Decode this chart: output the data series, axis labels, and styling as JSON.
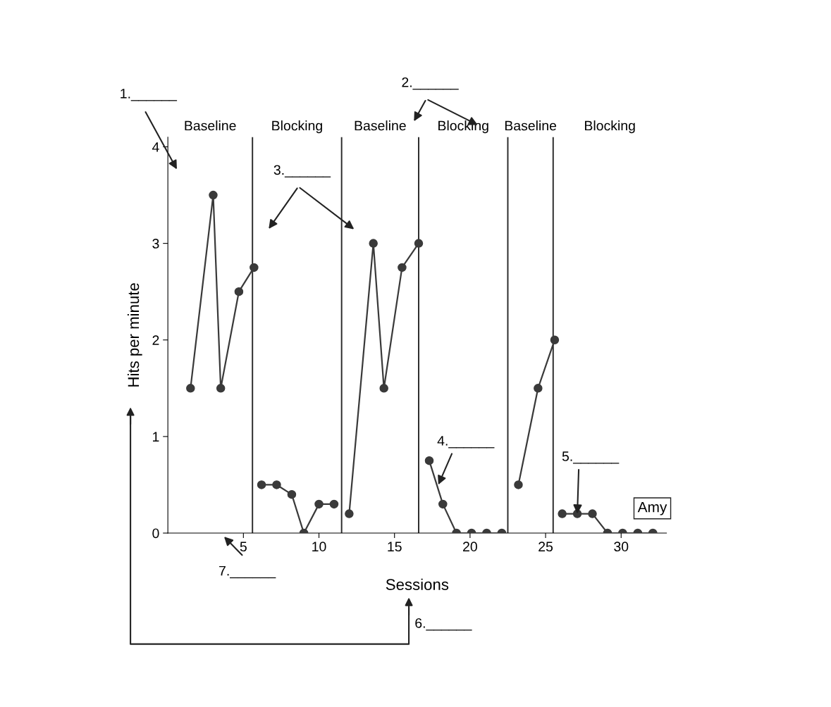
{
  "chart_data": {
    "type": "line",
    "xlabel": "Sessions",
    "ylabel": "Hits per minute",
    "xlim": [
      0,
      33
    ],
    "ylim": [
      0,
      4.1
    ],
    "xticks": [
      5,
      10,
      15,
      20,
      25,
      30
    ],
    "yticks": [
      0,
      1,
      2,
      3,
      4
    ],
    "grid": false,
    "legend": false,
    "marker": "circle",
    "line_style": "solid",
    "series": [
      {
        "color": "#3a3a3a",
        "x": [
          1.5,
          3,
          3.5,
          4.7,
          5.7
        ],
        "values": [
          1.5,
          3.5,
          1.5,
          2.5,
          2.75
        ]
      },
      {
        "color": "#3a3a3a",
        "x": [
          6.2,
          7.2,
          8.2,
          9.0,
          10.0,
          11.0
        ],
        "values": [
          0.5,
          0.5,
          0.4,
          0,
          0.3,
          0.3
        ]
      },
      {
        "color": "#3a3a3a",
        "x": [
          12.0,
          13.6,
          14.3,
          15.5,
          16.6
        ],
        "values": [
          0.2,
          3,
          1.5,
          2.75,
          3
        ]
      },
      {
        "color": "#3a3a3a",
        "x": [
          17.3,
          18.2,
          19.1,
          20.1,
          21.1,
          22.1
        ],
        "values": [
          0.75,
          0.3,
          0,
          0,
          0,
          0
        ]
      },
      {
        "color": "#3a3a3a",
        "x": [
          23.2,
          24.5,
          25.6
        ],
        "values": [
          0.5,
          1.5,
          2
        ]
      },
      {
        "color": "#3a3a3a",
        "x": [
          26.1,
          27.1,
          28.1,
          29.1,
          30.1,
          31.1,
          32.1
        ],
        "values": [
          0.2,
          0.2,
          0.2,
          0,
          0,
          0,
          0
        ]
      }
    ],
    "ref_lines": [
      {
        "axis": "x",
        "value": 5.6,
        "color": "#2a2a2a"
      },
      {
        "axis": "x",
        "value": 11.5,
        "color": "#2a2a2a"
      },
      {
        "axis": "x",
        "value": 16.6,
        "color": "#2a2a2a"
      },
      {
        "axis": "x",
        "value": 22.5,
        "color": "#2a2a2a"
      },
      {
        "axis": "x",
        "value": 25.5,
        "color": "#2a2a2a"
      }
    ],
    "annotations": [
      "Baseline",
      "Blocking",
      "Baseline",
      "Blocking",
      "Baseline",
      "Blocking",
      "1.______",
      "2.______",
      "3.______",
      {
        "text": "4.______",
        "x": 17.9,
        "y": 0.5
      },
      {
        "text": "5.______",
        "x": 27.1,
        "y": 0.2
      },
      "6.______",
      "7.______",
      "Amy"
    ]
  }
}
